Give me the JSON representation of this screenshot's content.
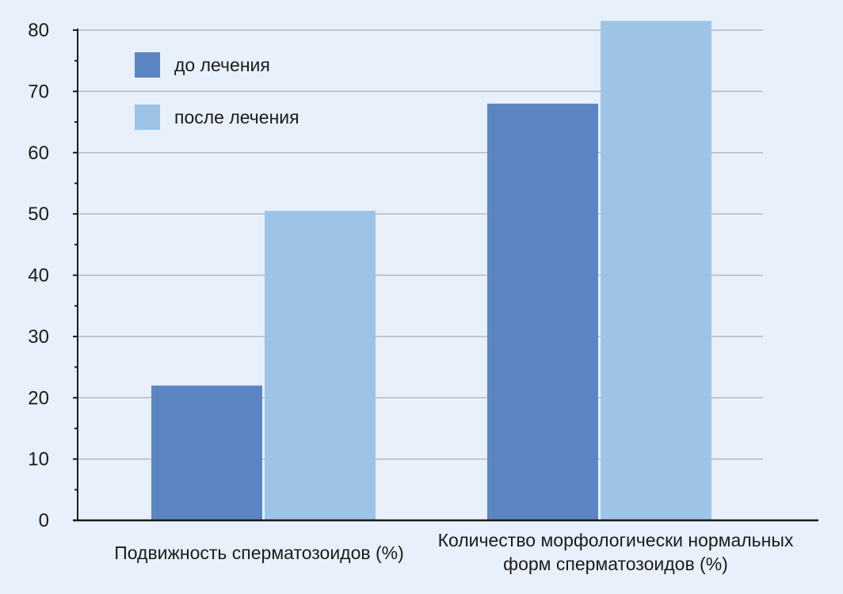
{
  "chart_data": {
    "type": "bar",
    "categories": [
      [
        "Подвижность сперматозоидов (%)"
      ],
      [
        "Количество морфологически нормальных",
        "форм сперматозоидов (%)"
      ]
    ],
    "series": [
      {
        "name": "до лечения",
        "color": "#5b86c3",
        "values": [
          22,
          68
        ]
      },
      {
        "name": "после лечения",
        "color": "#9dc3e6",
        "values": [
          50.5,
          81.5
        ]
      }
    ],
    "ylim": [
      0,
      80
    ],
    "yticks": [
      0,
      10,
      20,
      30,
      40,
      50,
      60,
      70,
      80
    ],
    "grid": true,
    "legend_position": "top-left",
    "title": "",
    "xlabel": "",
    "ylabel": ""
  },
  "colors": {
    "background": "#e8f1fb",
    "grid": "#b5b9bd",
    "axis": "#1b1b1b"
  }
}
